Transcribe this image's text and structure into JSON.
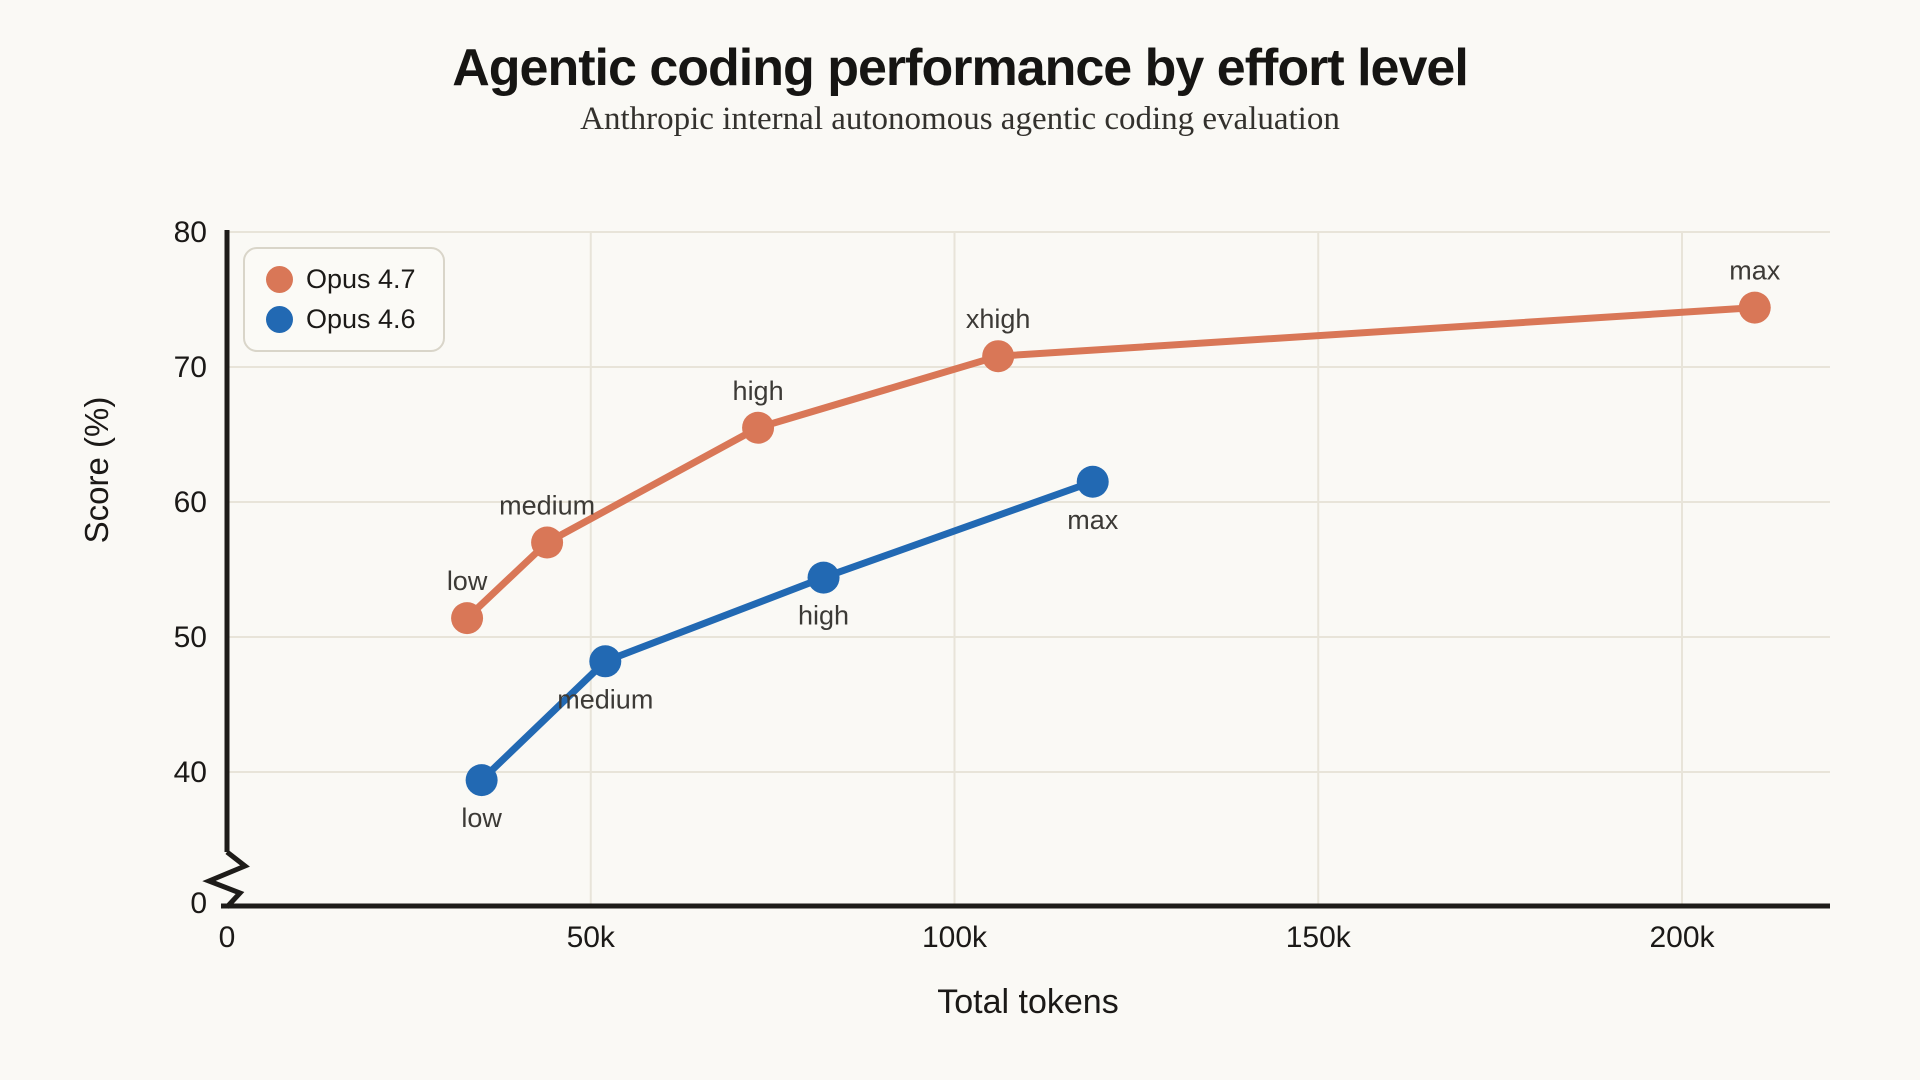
{
  "header": {
    "title": "Agentic coding performance by effort level",
    "subtitle": "Anthropic internal autonomous agentic coding evaluation"
  },
  "legend": {
    "items": [
      {
        "label": "Opus 4.7",
        "color": "#D97757"
      },
      {
        "label": "Opus 4.6",
        "color": "#2269B3"
      }
    ]
  },
  "chart_data": {
    "type": "line",
    "title": "Agentic coding performance by effort level",
    "subtitle": "Anthropic internal autonomous agentic coding evaluation",
    "xlabel": "Total tokens",
    "ylabel": "Score (%)",
    "grid": true,
    "legend_position": "top-left",
    "x_range_tokens": [
      0,
      220000
    ],
    "y_axis": {
      "displayed_range": [
        40,
        80
      ],
      "break_between": [
        0,
        40
      ]
    },
    "x_ticks": [
      {
        "v": 0,
        "label": "0"
      },
      {
        "v": 50000,
        "label": "50k"
      },
      {
        "v": 100000,
        "label": "100k"
      },
      {
        "v": 150000,
        "label": "150k"
      },
      {
        "v": 200000,
        "label": "200k"
      }
    ],
    "y_ticks": [
      {
        "v": 0,
        "label": "0"
      },
      {
        "v": 40,
        "label": "40"
      },
      {
        "v": 50,
        "label": "50"
      },
      {
        "v": 60,
        "label": "60"
      },
      {
        "v": 70,
        "label": "70"
      },
      {
        "v": 80,
        "label": "80"
      }
    ],
    "series": [
      {
        "name": "Opus 4.7",
        "color": "#D97757",
        "label_placement": "above",
        "points": [
          {
            "effort": "low",
            "tokens": 33000,
            "score": 51.4
          },
          {
            "effort": "medium",
            "tokens": 44000,
            "score": 57.0
          },
          {
            "effort": "high",
            "tokens": 73000,
            "score": 65.5
          },
          {
            "effort": "xhigh",
            "tokens": 106000,
            "score": 70.8
          },
          {
            "effort": "max",
            "tokens": 210000,
            "score": 74.4
          }
        ]
      },
      {
        "name": "Opus 4.6",
        "color": "#2269B3",
        "label_placement": "below",
        "points": [
          {
            "effort": "low",
            "tokens": 35000,
            "score": 39.4
          },
          {
            "effort": "medium",
            "tokens": 52000,
            "score": 48.2
          },
          {
            "effort": "high",
            "tokens": 82000,
            "score": 54.4
          },
          {
            "effort": "max",
            "tokens": 119000,
            "score": 61.5
          }
        ]
      }
    ]
  },
  "colors": {
    "background": "#FAF9F5",
    "grid": "#E8E4D9",
    "axis": "#1E1C19",
    "title_text": "#161513",
    "subtitle_text": "#33312D",
    "tick_text": "#1B1917",
    "point_label_text": "#3C3A36",
    "accent_orange": "#D97757",
    "accent_blue": "#2269B3"
  }
}
